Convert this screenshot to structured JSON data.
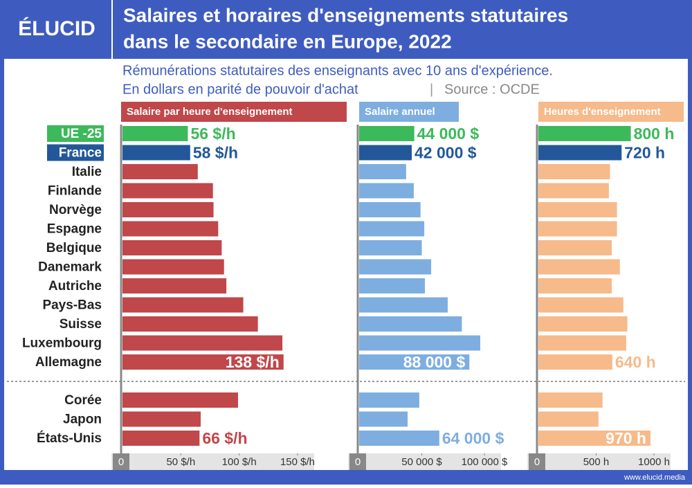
{
  "header": {
    "logo": "ÉLUCID",
    "title_lines": [
      "Salaires et horaires d'enseignements statutaires",
      "dans le secondaire en Europe, 2022"
    ],
    "subtitle": "Rémunérations statutaires des enseignants avec 10 ans d'expérience.",
    "note": "En dollars en parité de pouvoir d'achat",
    "separator": "|",
    "source": "Source : OCDE"
  },
  "footer": "www.elucid.media",
  "highlight_colors": [
    "#3cb95a",
    "#22589a"
  ],
  "chart_data": [
    {
      "type": "bar",
      "orientation": "horizontal",
      "title": "Salaire par heure d'enseignement",
      "color": "#c0474a",
      "categories": [
        "UE -25",
        "France",
        "Italie",
        "Finlande",
        "Norvège",
        "Espagne",
        "Belgique",
        "Danemark",
        "Autriche",
        "Pays-Bas",
        "Suisse",
        "Luxembourg",
        "Allemagne",
        "Corée",
        "Japon",
        "États-Unis"
      ],
      "values": [
        56,
        58,
        64.5,
        77.5,
        78,
        82,
        85,
        87,
        89,
        103.5,
        116,
        137,
        138,
        99,
        67,
        66
      ],
      "value_labels": [
        "56 $/h",
        "58 $/h",
        null,
        null,
        null,
        null,
        null,
        null,
        null,
        null,
        null,
        null,
        "138 $/h",
        null,
        null,
        "66 $/h"
      ],
      "xlim": [
        0,
        150
      ],
      "xticks": [
        0,
        {
          "value": 50,
          "label": "50 $/h"
        },
        {
          "value": 100,
          "label": "100 $/h"
        },
        {
          "value": 150,
          "label": "150 $/h"
        }
      ]
    },
    {
      "type": "bar",
      "orientation": "horizontal",
      "title": "Salaire annuel",
      "color": "#7eaee0",
      "values": [
        44000,
        42000,
        37500,
        43600,
        49000,
        52000,
        50000,
        57500,
        52500,
        70700,
        82000,
        96700,
        88000,
        48000,
        38700,
        64000
      ],
      "value_labels": [
        "44 000 $",
        "42 000 $",
        null,
        null,
        null,
        null,
        null,
        null,
        null,
        null,
        null,
        null,
        "88 000 $",
        null,
        null,
        "64 000 $"
      ],
      "xlim": [
        0,
        100000
      ],
      "xticks": [
        0,
        {
          "value": 50000,
          "label": "50 000 $"
        },
        {
          "value": 100000,
          "label": "100 000 $"
        }
      ]
    },
    {
      "type": "bar",
      "orientation": "horizontal",
      "title": "Heures d'enseignement",
      "color": "#f6ba8b",
      "values": [
        800,
        720,
        620,
        610,
        680,
        680,
        635,
        705,
        635,
        735,
        770,
        760,
        640,
        555,
        520,
        970
      ],
      "value_labels": [
        "800 h",
        "720 h",
        null,
        null,
        null,
        null,
        null,
        null,
        null,
        null,
        null,
        null,
        "640 h",
        null,
        null,
        "970 h"
      ],
      "xlim": [
        0,
        1000
      ],
      "xticks": [
        0,
        {
          "value": 500,
          "label": "500 h"
        },
        {
          "value": 1000,
          "label": "1000 h"
        }
      ]
    }
  ]
}
